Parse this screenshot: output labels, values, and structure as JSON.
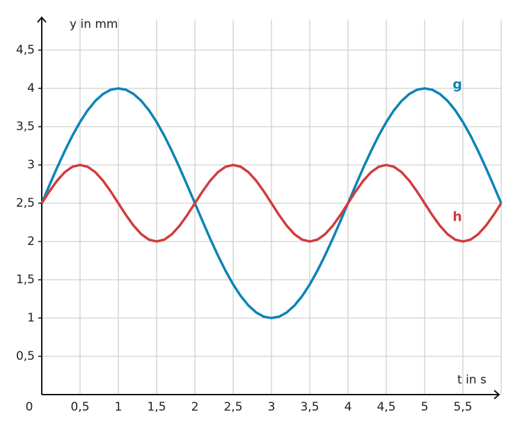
{
  "chart_data": {
    "type": "line",
    "ylabel": "y in mm",
    "xlabel": "t in s",
    "x": [
      0,
      0.1,
      0.2,
      0.3,
      0.4,
      0.5,
      0.6,
      0.7,
      0.8,
      0.9,
      1,
      1.1,
      1.2,
      1.3,
      1.4,
      1.5,
      1.6,
      1.7,
      1.8,
      1.9,
      2,
      2.1,
      2.2,
      2.3,
      2.4,
      2.5,
      2.6,
      2.7,
      2.8,
      2.9,
      3,
      3.1,
      3.2,
      3.3,
      3.4,
      3.5,
      3.6,
      3.7,
      3.8,
      3.9,
      4,
      4.1,
      4.2,
      4.3,
      4.4,
      4.5,
      4.6,
      4.7,
      4.8,
      4.9,
      5,
      5.1,
      5.2,
      5.3,
      5.4,
      5.5,
      5.6,
      5.7,
      5.8,
      5.9,
      6
    ],
    "series": [
      {
        "name": "g",
        "color": "#0b84b5",
        "values": [
          2.5,
          2.735,
          2.964,
          3.181,
          3.382,
          3.561,
          3.714,
          3.837,
          3.927,
          3.982,
          4,
          3.982,
          3.927,
          3.837,
          3.714,
          3.561,
          3.382,
          3.181,
          2.964,
          2.735,
          2.5,
          2.265,
          2.036,
          1.819,
          1.618,
          1.439,
          1.286,
          1.163,
          1.073,
          1.018,
          1,
          1.018,
          1.073,
          1.163,
          1.286,
          1.439,
          1.618,
          1.819,
          2.036,
          2.265,
          2.5,
          2.735,
          2.964,
          3.181,
          3.382,
          3.561,
          3.714,
          3.837,
          3.927,
          3.982,
          4,
          3.982,
          3.927,
          3.837,
          3.714,
          3.561,
          3.382,
          3.181,
          2.964,
          2.735,
          2.5
        ]
      },
      {
        "name": "h",
        "color": "#d13c3c",
        "values": [
          2.5,
          2.655,
          2.794,
          2.905,
          2.976,
          3,
          2.976,
          2.905,
          2.794,
          2.655,
          2.5,
          2.345,
          2.206,
          2.095,
          2.024,
          2,
          2.024,
          2.095,
          2.206,
          2.345,
          2.5,
          2.655,
          2.794,
          2.905,
          2.976,
          3,
          2.976,
          2.905,
          2.794,
          2.655,
          2.5,
          2.345,
          2.206,
          2.095,
          2.024,
          2,
          2.024,
          2.095,
          2.206,
          2.345,
          2.5,
          2.655,
          2.794,
          2.905,
          2.976,
          3,
          2.976,
          2.905,
          2.794,
          2.655,
          2.5,
          2.345,
          2.206,
          2.095,
          2.024,
          2,
          2.024,
          2.095,
          2.206,
          2.345,
          2.5
        ]
      }
    ],
    "xlim": [
      0,
      6
    ],
    "ylim": [
      0,
      4.9
    ],
    "xticks": [
      0,
      {
        "value": 0.5,
        "label": "0,5"
      },
      1,
      {
        "value": 1.5,
        "label": "1,5"
      },
      2,
      {
        "value": 2.5,
        "label": "2,5"
      },
      3,
      {
        "value": 3.5,
        "label": "3,5"
      },
      4,
      {
        "value": 4.5,
        "label": "4,5"
      },
      5,
      {
        "value": 5.5,
        "label": "5,5"
      }
    ],
    "yticks": [
      {
        "value": 0.5,
        "label": "0,5"
      },
      1,
      {
        "value": 1.5,
        "label": "1,5"
      },
      2,
      {
        "value": 2.5,
        "label": "2,5"
      },
      3,
      {
        "value": 3.5,
        "label": "3,5"
      },
      4,
      {
        "value": 4.5,
        "label": "4,5"
      }
    ],
    "grid": true
  }
}
